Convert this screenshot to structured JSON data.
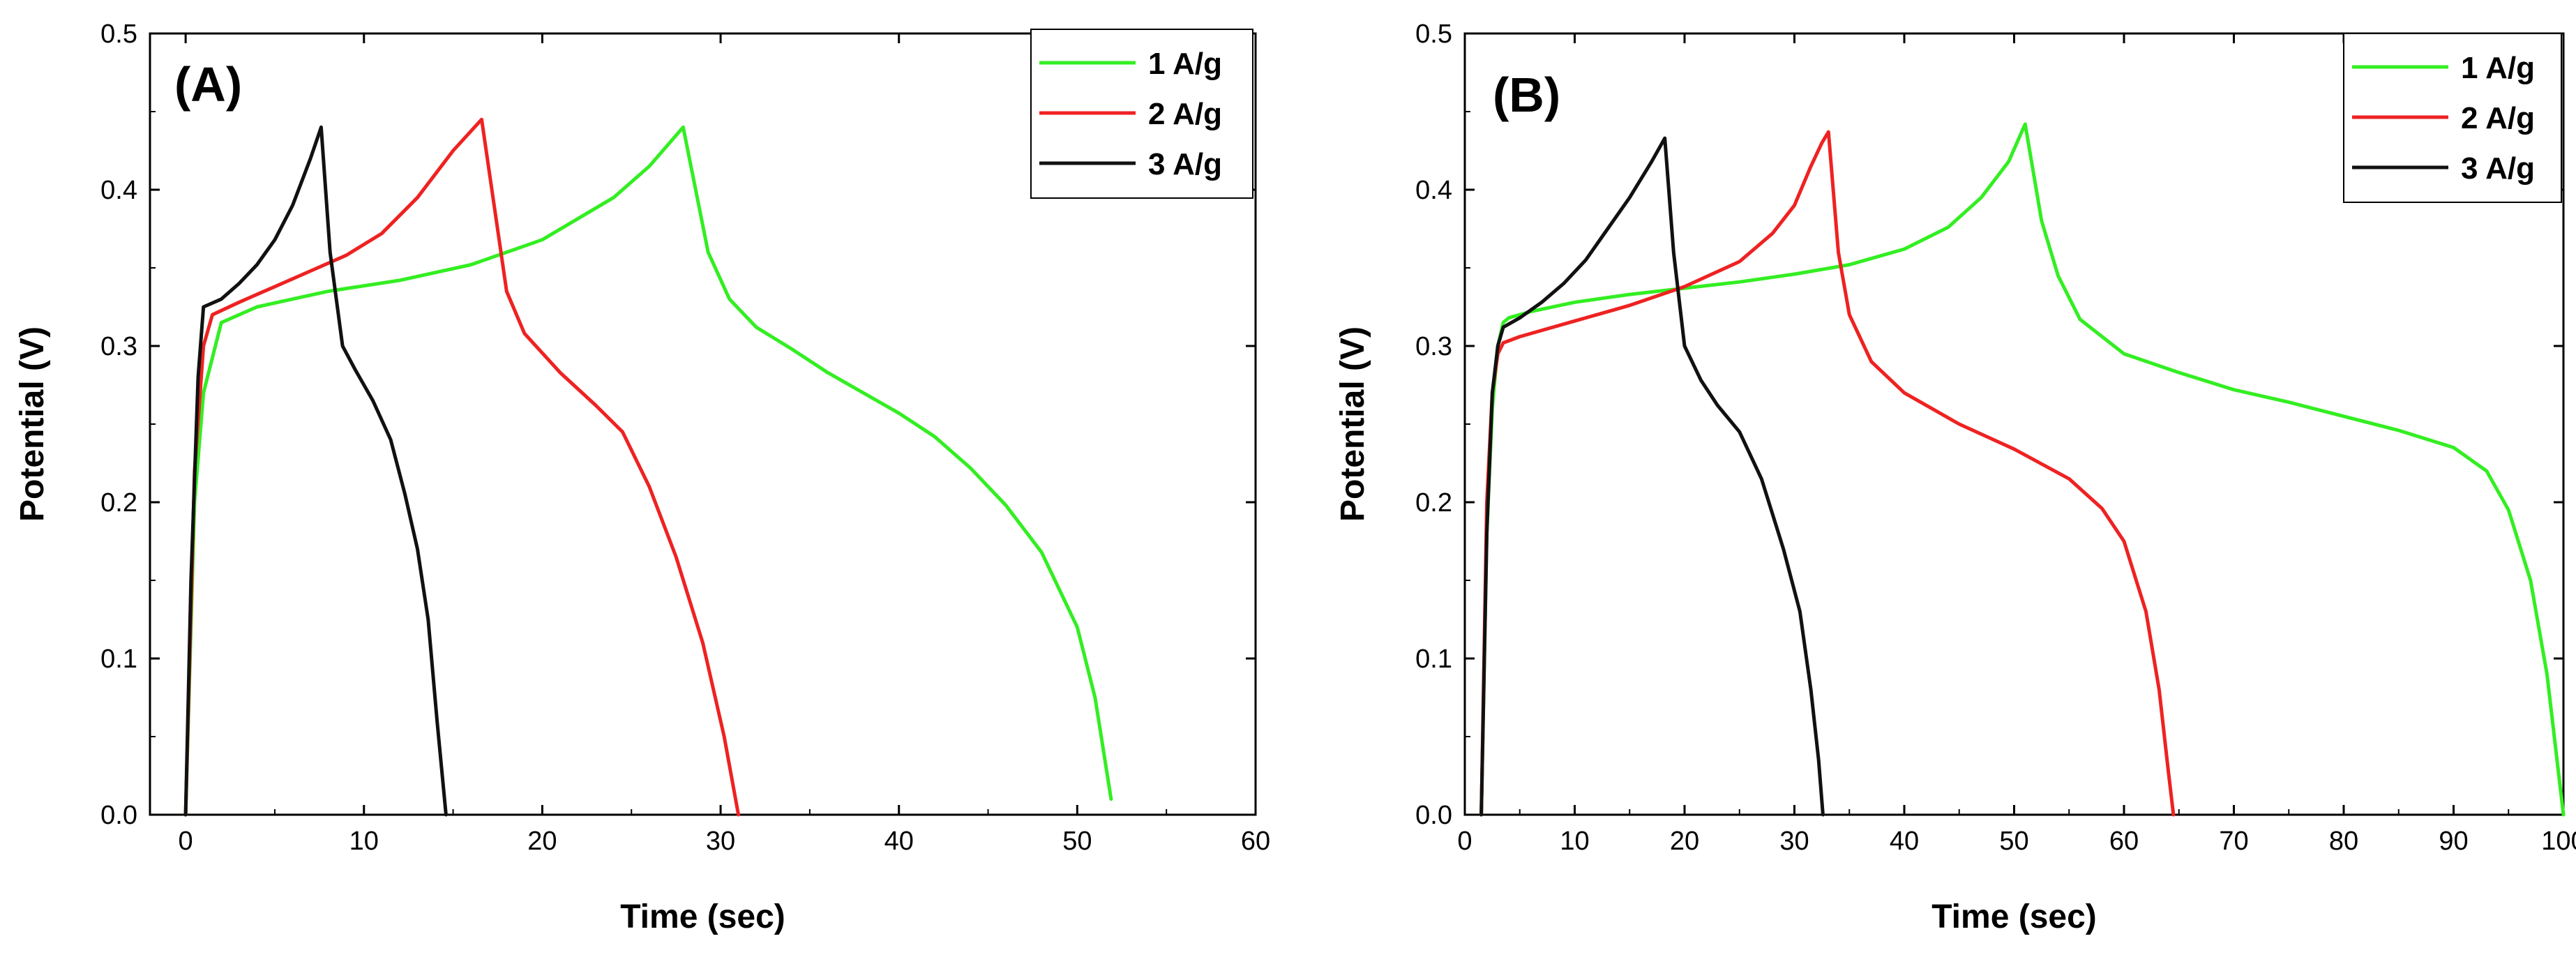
{
  "chart_data": [
    {
      "type": "line",
      "panel_label": "(A)",
      "xlabel": "Time (sec)",
      "ylabel": "Potential (V)",
      "xlim": [
        -2,
        60
      ],
      "ylim": [
        0,
        0.5
      ],
      "xticks": [
        0,
        10,
        20,
        30,
        40,
        50,
        60
      ],
      "yticks": [
        0.0,
        0.1,
        0.2,
        0.3,
        0.4,
        0.5
      ],
      "legend_position": "top-right",
      "series": [
        {
          "name": "1 A/g",
          "color": "#33ee22",
          "x": [
            0,
            0.5,
            1,
            2,
            4,
            8,
            12,
            16,
            20,
            24,
            26,
            27.9,
            28.6,
            29.3,
            30.5,
            32,
            34,
            36,
            38,
            40,
            42,
            44,
            46,
            48,
            50,
            51,
            51.9
          ],
          "y": [
            0,
            0.2,
            0.27,
            0.315,
            0.325,
            0.335,
            0.342,
            0.352,
            0.368,
            0.395,
            0.415,
            0.44,
            0.4,
            0.36,
            0.33,
            0.312,
            0.298,
            0.283,
            0.27,
            0.257,
            0.242,
            0.222,
            0.198,
            0.168,
            0.12,
            0.075,
            0.01
          ]
        },
        {
          "name": "2 A/g",
          "color": "#ee2222",
          "x": [
            0,
            0.5,
            1,
            1.5,
            3,
            5,
            7,
            9,
            11,
            13,
            15,
            16.6,
            17.3,
            18,
            19,
            21,
            23,
            24.5,
            26,
            27.5,
            29,
            30.2,
            31
          ],
          "y": [
            0,
            0.22,
            0.3,
            0.32,
            0.328,
            0.338,
            0.348,
            0.358,
            0.372,
            0.395,
            0.425,
            0.445,
            0.39,
            0.335,
            0.308,
            0.283,
            0.262,
            0.245,
            0.21,
            0.165,
            0.11,
            0.05,
            0.0
          ]
        },
        {
          "name": "3 A/g",
          "color": "#111111",
          "x": [
            0,
            0.3,
            0.7,
            1,
            2,
            3,
            4,
            5,
            6,
            7,
            7.6,
            8.1,
            8.8,
            9.5,
            10.5,
            11.5,
            12.3,
            13,
            13.6,
            14.1,
            14.6
          ],
          "y": [
            0,
            0.15,
            0.28,
            0.325,
            0.33,
            0.34,
            0.352,
            0.368,
            0.39,
            0.42,
            0.44,
            0.36,
            0.3,
            0.285,
            0.265,
            0.24,
            0.205,
            0.17,
            0.125,
            0.06,
            0.0
          ]
        }
      ]
    },
    {
      "type": "line",
      "panel_label": "(B)",
      "xlabel": "Time (sec)",
      "ylabel": "Potential (V)",
      "xlim": [
        0,
        100
      ],
      "ylim": [
        0,
        0.5
      ],
      "xticks": [
        0,
        10,
        20,
        30,
        40,
        50,
        60,
        70,
        80,
        90,
        100
      ],
      "yticks": [
        0.0,
        0.1,
        0.2,
        0.3,
        0.4,
        0.5
      ],
      "legend_position": "top-right",
      "series": [
        {
          "name": "1 A/g",
          "color": "#33ee22",
          "x": [
            1.5,
            2,
            2.5,
            3,
            3.5,
            4,
            6,
            10,
            15,
            20,
            25,
            30,
            35,
            40,
            44,
            47,
            49.5,
            51,
            52.5,
            54,
            56,
            60,
            65,
            70,
            75,
            80,
            85,
            90,
            93,
            95,
            97,
            98.5,
            99.5,
            100
          ],
          "y": [
            0,
            0.18,
            0.26,
            0.3,
            0.315,
            0.318,
            0.322,
            0.328,
            0.333,
            0.337,
            0.341,
            0.346,
            0.352,
            0.362,
            0.376,
            0.395,
            0.418,
            0.442,
            0.38,
            0.345,
            0.317,
            0.295,
            0.283,
            0.272,
            0.264,
            0.255,
            0.246,
            0.235,
            0.22,
            0.195,
            0.15,
            0.09,
            0.03,
            0.0
          ]
        },
        {
          "name": "2 A/g",
          "color": "#ee2222",
          "x": [
            1.5,
            2,
            2.5,
            3,
            3.5,
            5,
            10,
            15,
            20,
            25,
            28,
            30,
            31.5,
            32.5,
            33.1,
            34,
            35,
            37,
            40,
            45,
            50,
            55,
            58,
            60,
            62,
            63.2,
            64,
            64.5
          ],
          "y": [
            0,
            0.2,
            0.27,
            0.295,
            0.302,
            0.306,
            0.316,
            0.326,
            0.338,
            0.354,
            0.372,
            0.39,
            0.415,
            0.43,
            0.437,
            0.36,
            0.32,
            0.29,
            0.27,
            0.25,
            0.234,
            0.215,
            0.196,
            0.175,
            0.13,
            0.08,
            0.03,
            0.0
          ]
        },
        {
          "name": "3 A/g",
          "color": "#111111",
          "x": [
            1.5,
            2,
            2.5,
            3,
            3.5,
            5,
            7,
            9,
            11,
            13,
            15,
            17,
            18.2,
            19,
            20,
            21.5,
            23,
            25,
            27,
            29,
            30.5,
            31.5,
            32.2,
            32.6
          ],
          "y": [
            0,
            0.18,
            0.27,
            0.3,
            0.312,
            0.318,
            0.328,
            0.34,
            0.355,
            0.375,
            0.395,
            0.418,
            0.433,
            0.36,
            0.3,
            0.278,
            0.262,
            0.245,
            0.215,
            0.17,
            0.13,
            0.08,
            0.035,
            0.0
          ]
        }
      ]
    }
  ]
}
